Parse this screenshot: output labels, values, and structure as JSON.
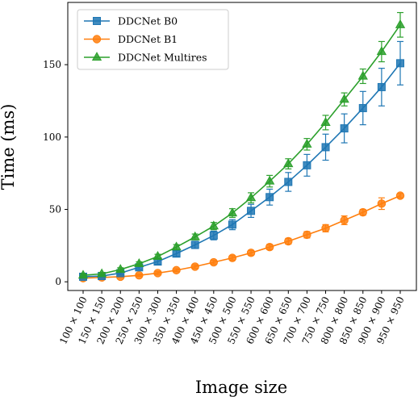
{
  "chart_data": {
    "type": "line",
    "xlabel": "Image size",
    "ylabel": "Time (ms)",
    "categories": [
      "100 × 100",
      "150 × 150",
      "200 × 200",
      "250 × 250",
      "300 × 300",
      "350 × 350",
      "400 × 400",
      "450 × 450",
      "500 × 500",
      "550 × 550",
      "600 × 600",
      "650 × 650",
      "700 × 700",
      "750 × 750",
      "800 × 800",
      "850 × 850",
      "900 × 900",
      "950 × 950"
    ],
    "ylim": [
      -6,
      193
    ],
    "yticks": [
      0,
      50,
      100,
      150
    ],
    "grid": false,
    "legend_position": "top-left",
    "series": [
      {
        "name": "DDCNet B0",
        "color": "#1f77b4",
        "marker": "square",
        "values": [
          3.5,
          4,
          6,
          10,
          14,
          19.5,
          25.5,
          32,
          39.5,
          49,
          58.5,
          69,
          80.5,
          93,
          106,
          120,
          134.5,
          151
        ],
        "errors": [
          1,
          1,
          1,
          1.5,
          2,
          2,
          2.5,
          3,
          3.5,
          4.5,
          5.5,
          6.5,
          7.5,
          9,
          10,
          11.5,
          13,
          15
        ]
      },
      {
        "name": "DDCNet B1",
        "color": "#ff7f0e",
        "marker": "circle",
        "values": [
          2.5,
          3,
          3.5,
          4.5,
          6,
          8,
          10.5,
          13.5,
          16.5,
          20,
          24,
          28,
          32.5,
          37,
          42.5,
          48,
          54,
          59.5
        ],
        "errors": [
          0.5,
          0.5,
          0.5,
          0.8,
          1,
          1,
          1.2,
          1.3,
          1.5,
          1.6,
          1.8,
          2,
          2.2,
          2.5,
          3,
          2,
          4,
          1.5
        ]
      },
      {
        "name": "DDCNet Multires",
        "color": "#2ca02c",
        "marker": "triangle",
        "values": [
          4.5,
          5.5,
          8.5,
          12.5,
          17.5,
          24,
          31,
          38.5,
          47.5,
          58,
          69.5,
          81.5,
          95,
          110,
          126,
          142,
          159,
          177.5
        ],
        "errors": [
          1,
          1,
          1.2,
          1.3,
          1.5,
          1.7,
          2,
          2.5,
          3,
          3.5,
          4,
          3.5,
          4,
          5,
          4.5,
          5,
          7,
          8.5
        ]
      }
    ]
  }
}
